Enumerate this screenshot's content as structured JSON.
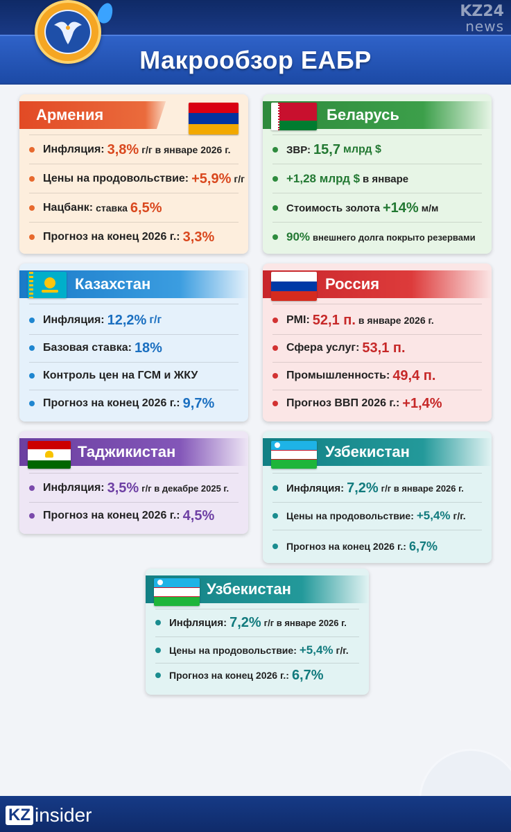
{
  "header": {
    "title": "Макрообзор ЕАБР",
    "watermark_top": "KZ24",
    "watermark_bottom": "news"
  },
  "colors": {
    "armenia": "#e24a25",
    "belarus": "#2e8a3c",
    "kazakhstan": "#1a7ac8",
    "russia": "#c8262b",
    "tajikistan": "#6b3fa0",
    "uzbekistan": "#127f84",
    "header": "#1d4596"
  },
  "cards": {
    "armenia": {
      "name": "Армения",
      "rows": [
        {
          "label": "Инфляция:",
          "value": "3,8%",
          "suffix": "г/г в январе 2026 г."
        },
        {
          "label": "Цены на продовольствие:",
          "value": "+5,9%",
          "suffix": "г/г"
        },
        {
          "label": "Нацбанк:",
          "value": "6,5%",
          "prefix": "ставка"
        },
        {
          "label": "Прогноз на конец 2026 г.:",
          "value": "3,3%"
        }
      ]
    },
    "belarus": {
      "name": "Беларусь",
      "rows": [
        {
          "label": "ЗВР:",
          "value": "15,7",
          "suffix": "млрд $"
        },
        {
          "label": "+1,28 млрд $",
          "suffix": "в январе"
        },
        {
          "label": "Стоимость золота",
          "value": "+14%",
          "suffix": "м/м"
        },
        {
          "label": "90%",
          "suffix": "внешнего долга покрыто резервами"
        }
      ]
    },
    "kazakhstan": {
      "name": "Казахстан",
      "rows": [
        {
          "label": "Инфляция:",
          "value": "12,2%",
          "suffix": "г/г"
        },
        {
          "label": "Базовая ставка:",
          "value": "18%"
        },
        {
          "label": "Контроль цен на ГСМ и ЖКУ"
        },
        {
          "label": "Прогноз на конец 2026 г.:",
          "value": "9,7%"
        }
      ]
    },
    "russia": {
      "name": "Россия",
      "rows": [
        {
          "label": "PMI:",
          "value": "52,1 п.",
          "suffix": "в январе 2026 г."
        },
        {
          "label": "Сфера услуг:",
          "value": "53,1 п."
        },
        {
          "label": "Промышленность:",
          "value": "49,4 п."
        },
        {
          "label": "Прогноз ВВП 2026 г.:",
          "value": "+1,4%"
        }
      ]
    },
    "tajikistan": {
      "name": "Таджикистан",
      "rows": [
        {
          "label": "Инфляция:",
          "value": "3,5%",
          "suffix": "г/г в декабре 2025 г."
        },
        {
          "label": "Прогноз на конец 2026 г.:",
          "value": "4,5%"
        }
      ]
    },
    "uzbekistan_1": {
      "name": "Узбекистан",
      "rows": [
        {
          "label": "Инфляция:",
          "value": "7,2%",
          "suffix": "г/г в январе 2026 г."
        },
        {
          "label": "Цены на продовольствие:",
          "value": "+5,4%",
          "suffix": "г/г."
        },
        {
          "label": "Прогноз на конец 2026 г.:",
          "value": "6,7%"
        }
      ]
    },
    "uzbekistan_2": {
      "name": "Узбекистан",
      "rows": [
        {
          "label": "Инфляция:",
          "value": "7,2%",
          "suffix": "г/г в январе 2026 г."
        },
        {
          "label": "Цены на продовольствие:",
          "value": "+5,4%",
          "suffix": "г/г."
        },
        {
          "label": "Прогноз на конец 2026 г.:",
          "value": "6,7%"
        }
      ]
    }
  },
  "footer": {
    "brand_kz": "KZ",
    "brand_rest": "insider"
  }
}
